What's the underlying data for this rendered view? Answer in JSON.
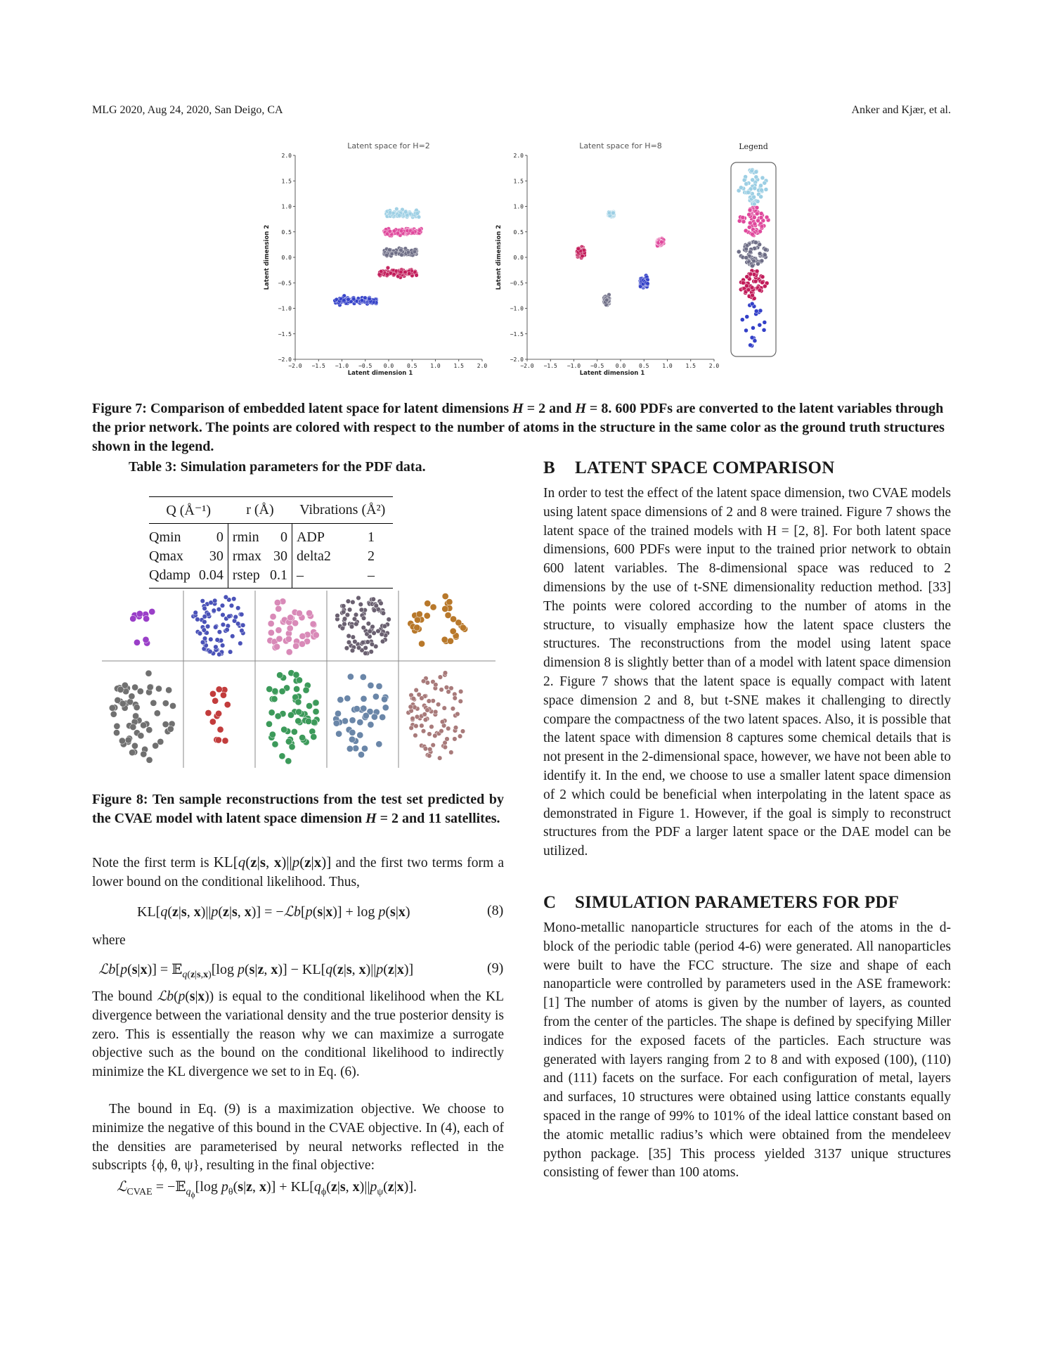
{
  "header": {
    "left": "MLG 2020, Aug 24, 2020, San Deigo, CA",
    "right": "Anker and Kjær, et al."
  },
  "figure7": {
    "left_title": "Latent space for H=2",
    "right_title": "Latent space for H=8",
    "legend_title": "Legend",
    "xlabel": "Latent dimension 1",
    "ylabel": "Latent dimension 2",
    "ticks": [
      "−2.0",
      "−1.5",
      "−1.0",
      "−0.5",
      "0.0",
      "0.5",
      "1.0",
      "1.5",
      "2.0"
    ],
    "yticks": [
      "2.0",
      "1.5",
      "1.0",
      "0.5",
      "0.0",
      "−0.5",
      "−1.0",
      "−1.5",
      "−2.0"
    ],
    "colors": [
      "#9ccfe4",
      "#e0489c",
      "#6e6e86",
      "#c21c5a",
      "#3340c8"
    ]
  },
  "chart_data": [
    {
      "type": "scatter",
      "title": "Latent space for H=2",
      "xlabel": "Latent dimension 1",
      "ylabel": "Latent dimension 2",
      "xlim": [
        -2.0,
        2.0
      ],
      "ylim": [
        -2.0,
        2.0
      ],
      "series": [
        {
          "color": "#9ccfe4",
          "center": [
            0.3,
            0.85
          ],
          "spread": [
            0.35,
            0.05
          ]
        },
        {
          "color": "#e0489c",
          "center": [
            0.3,
            0.5
          ],
          "spread": [
            0.4,
            0.05
          ]
        },
        {
          "color": "#6e6e86",
          "center": [
            0.25,
            0.1
          ],
          "spread": [
            0.35,
            0.05
          ]
        },
        {
          "color": "#c21c5a",
          "center": [
            0.2,
            -0.3
          ],
          "spread": [
            0.4,
            0.05
          ]
        },
        {
          "color": "#3340c8",
          "center": [
            -0.7,
            -0.85
          ],
          "spread": [
            0.45,
            0.06
          ]
        }
      ]
    },
    {
      "type": "scatter",
      "title": "Latent space for H=8",
      "xlabel": "Latent dimension 1",
      "ylabel": "Latent dimension 2",
      "xlim": [
        -2.0,
        2.0
      ],
      "ylim": [
        -2.0,
        2.0
      ],
      "series": [
        {
          "color": "#9ccfe4",
          "center": [
            -0.2,
            0.85
          ],
          "spread": [
            0.06,
            0.04
          ]
        },
        {
          "color": "#e0489c",
          "center": [
            0.85,
            0.3
          ],
          "spread": [
            0.07,
            0.05
          ]
        },
        {
          "color": "#6e6e86",
          "center": [
            -0.3,
            -0.85
          ],
          "spread": [
            0.06,
            0.06
          ]
        },
        {
          "color": "#c21c5a",
          "center": [
            -0.85,
            0.1
          ],
          "spread": [
            0.08,
            0.06
          ]
        },
        {
          "color": "#3340c8",
          "center": [
            0.5,
            -0.5
          ],
          "spread": [
            0.08,
            0.07
          ]
        }
      ]
    }
  ],
  "fig7_caption": "Figure 7: Comparison of embedded latent space for latent dimensions H = 2 and H = 8. 600 PDFs are converted to the latent variables through the prior network. The points are colored with respect to the number of atoms in the structure in the same color as the ground truth structures shown in the legend.",
  "table3": {
    "caption": "Table 3: Simulation parameters for the PDF data.",
    "headers": [
      "Q (Å⁻¹)",
      "r (Å)",
      "Vibrations (Å²)"
    ],
    "rows": [
      [
        "Qmin",
        "0",
        "rmin",
        "0",
        "ADP",
        "1"
      ],
      [
        "Qmax",
        "30",
        "rmax",
        "30",
        "delta2",
        "2"
      ],
      [
        "Qdamp",
        "0.04",
        "rstep",
        "0.1",
        "–",
        "–"
      ]
    ]
  },
  "figure8": {
    "colors": [
      "#9a3fc8",
      "#4a52b8",
      "#d98ab8",
      "#6a6070",
      "#b8782a",
      "#707070",
      "#c23c3c",
      "#3c9a5a",
      "#6a86a8",
      "#a87a7a"
    ]
  },
  "fig8_caption": "Figure 8: Ten sample reconstructions from the test set predicted by the CVAE model with latent space dimension H = 2 and 11 satellites.",
  "left_text": {
    "p1a": "Note the first term is ",
    "p1b": " and the first two terms form a lower bound on the conditional likelihood. Thus,",
    "where": "where",
    "eq8num": "(8)",
    "eq9num": "(9)",
    "p2": "is equal to the conditional likelihood when the KL divergence between the variational density and the true posterior density is zero. This is essentially the reason why we can maximize a surrogate objective such as the bound on the conditional likelihood to indirectly minimize the KL divergence we set to in Eq. (6).",
    "p3": "The bound in Eq. (9) is a maximization objective. We choose to minimize the negative of this bound in the CVAE objective. In (4), each of the densities are parameterised by neural networks reflected in the subscripts {ϕ, θ, ψ}, resulting in the final objective:"
  },
  "section_b": {
    "num": "B",
    "title": "LATENT SPACE COMPARISON",
    "text": "In order to test the effect of the latent space dimension, two CVAE models using latent space dimensions of 2 and 8 were trained. Figure 7 shows the latent space of the trained models with H = [2, 8]. For both latent space dimensions, 600 PDFs were input to the trained prior network to obtain 600 latent variables. The 8-dimensional space was reduced to 2 dimensions by the use of t-SNE dimensionality reduction method. [33] The points were colored according to the number of atoms in the structure, to visually emphasize how the latent space clusters the structures. The reconstructions from the model using latent space dimension 8 is slightly better than of a model with latent space dimension 2. Figure 7 shows that the latent space is equally compact with latent space dimension 2 and 8, but t-SNE makes it challenging to directly compare the compactness of the two latent spaces. Also, it is possible that the latent space with dimension 8 captures some chemical details that is not present in the 2-dimensional space, however, we have not been able to identify it. In the end, we choose to use a smaller latent space dimension of 2 which could be beneficial when interpolating in the latent space as demonstrated in Figure 1. However, if the goal is simply to reconstruct structures from the PDF a larger latent space or the DAE model can be utilized."
  },
  "section_c": {
    "num": "C",
    "title": "SIMULATION PARAMETERS FOR PDF",
    "text": "Mono-metallic nanoparticle structures for each of the atoms in the d-block of the periodic table (period 4-6) were generated. All nanoparticles were built to have the FCC structure. The size and shape of each nanoparticle were controlled by parameters used in the ASE framework: [1] The number of atoms is given by the number of layers, as counted from the center of the particles. The shape is defined by specifying Miller indices for the exposed facets of the particles. Each structure was generated with layers ranging from 2 to 8 and with exposed (100), (110) and (111) facets on the surface. For each configuration of metal, layers and surfaces, 10 structures were obtained using lattice constants equally spaced in the range of 99% to 101% of the ideal lattice constant based on the atomic metallic radius’s which were obtained from the mendeleev python package. [35] This process yielded 3137 unique structures consisting of fewer than 100 atoms."
  }
}
